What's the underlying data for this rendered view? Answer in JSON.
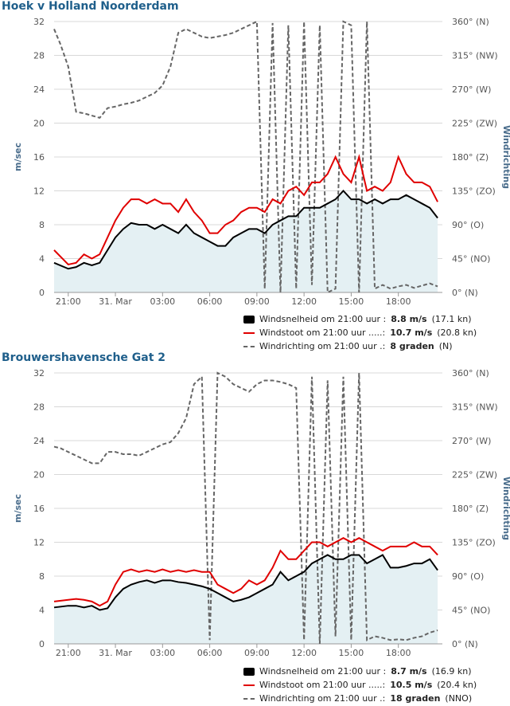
{
  "chart_data": [
    {
      "type": "area",
      "title": "Hoek v Holland Noorderdam",
      "ylabel_left": "m/sec",
      "ylabel_right": "Windrichting",
      "x_ticks": [
        "21:00",
        "31. Mar",
        "03:00",
        "06:00",
        "09:00",
        "12:00",
        "15:00",
        "18:00"
      ],
      "x_tick_hours": [
        0,
        3,
        6,
        9,
        12,
        15,
        18,
        21
      ],
      "x_range_hours": [
        -0.9,
        23.8
      ],
      "y_ticks_left": [
        "0",
        "4",
        "8",
        "12",
        "16",
        "20",
        "24",
        "28",
        "32"
      ],
      "y_ticks_right": [
        "0° (N)",
        "45° (NO)",
        "90° (O)",
        "135° (ZO)",
        "180° (Z)",
        "225° (ZW)",
        "270° (W)",
        "315° (NW)",
        "360° (N)"
      ],
      "ylim_left": [
        0,
        32
      ],
      "ylim_right": [
        0,
        360
      ],
      "grid": true,
      "legend_position": "bottom-right",
      "series": [
        {
          "name": "Windsnelheid",
          "color": "#000000",
          "style": "area",
          "x": [
            -0.9,
            0,
            0.5,
            1,
            1.5,
            2,
            2.5,
            3,
            3.5,
            4,
            4.5,
            5,
            5.5,
            6,
            6.5,
            7,
            7.5,
            8,
            8.5,
            9,
            9.5,
            10,
            10.5,
            11,
            11.5,
            12,
            12.5,
            13,
            13.5,
            14,
            14.5,
            15,
            15.5,
            16,
            16.5,
            17,
            17.5,
            18,
            18.5,
            19,
            19.5,
            20,
            20.5,
            21,
            21.5,
            22,
            22.5,
            23,
            23.5
          ],
          "values": [
            3.5,
            2.8,
            3,
            3.5,
            3.2,
            3.5,
            5,
            6.5,
            7.5,
            8.2,
            8,
            8,
            7.5,
            8,
            7.5,
            7,
            8,
            7,
            6.5,
            6,
            5.5,
            5.5,
            6.5,
            7,
            7.5,
            7.5,
            7,
            8,
            8.5,
            9,
            9,
            10,
            10,
            10,
            10.5,
            11,
            12,
            11,
            11,
            10.5,
            11,
            10.5,
            11,
            11,
            11.5,
            11,
            10.5,
            10,
            8.8
          ]
        },
        {
          "name": "Windstoot",
          "color": "#e00000",
          "style": "line",
          "x": [
            -0.9,
            0,
            0.5,
            1,
            1.5,
            2,
            2.5,
            3,
            3.5,
            4,
            4.5,
            5,
            5.5,
            6,
            6.5,
            7,
            7.5,
            8,
            8.5,
            9,
            9.5,
            10,
            10.5,
            11,
            11.5,
            12,
            12.5,
            13,
            13.5,
            14,
            14.5,
            15,
            15.5,
            16,
            16.5,
            17,
            17.5,
            18,
            18.5,
            19,
            19.5,
            20,
            20.5,
            21,
            21.5,
            22,
            22.5,
            23,
            23.5
          ],
          "values": [
            5,
            3.3,
            3.5,
            4.5,
            4,
            4.5,
            6.5,
            8.5,
            10,
            11,
            11,
            10.5,
            11,
            10.5,
            10.5,
            9.5,
            11,
            9.5,
            8.5,
            7,
            7,
            8,
            8.5,
            9.5,
            10,
            10,
            9.5,
            11,
            10.5,
            12,
            12.5,
            11.5,
            13,
            13,
            14,
            16,
            14,
            13,
            16,
            12,
            12.5,
            12,
            13,
            16,
            14,
            13,
            13,
            12.5,
            10.7
          ]
        },
        {
          "name": "Windrichting",
          "color": "#666666",
          "style": "dashed",
          "x": [
            -0.9,
            -0.5,
            0,
            0.5,
            1,
            1.5,
            2,
            2.5,
            3,
            3.5,
            4,
            4.5,
            5,
            5.5,
            6,
            6.5,
            7,
            7.5,
            8,
            8.5,
            9,
            9.5,
            10,
            10.5,
            11,
            11.5,
            12,
            12.5,
            13,
            13.5,
            14,
            14.5,
            15,
            15.5,
            16,
            16.5,
            17,
            17.5,
            18,
            18.5,
            19,
            19.5,
            20,
            20.5,
            21,
            21.5,
            22,
            22.5,
            23,
            23.5
          ],
          "values": [
            350,
            330,
            300,
            240,
            238,
            235,
            232,
            245,
            247,
            250,
            252,
            255,
            260,
            265,
            275,
            300,
            345,
            350,
            345,
            340,
            338,
            340,
            342,
            345,
            350,
            355,
            360,
            5,
            358,
            0,
            355,
            5,
            360,
            10,
            355,
            0,
            5,
            360,
            355,
            0,
            360,
            5,
            10,
            5,
            8,
            10,
            6,
            9,
            12,
            8
          ]
        }
      ]
    },
    {
      "type": "area",
      "title": "Brouwershavensche Gat 2",
      "ylabel_left": "m/sec",
      "ylabel_right": "Windrichting",
      "x_ticks": [
        "21:00",
        "31. Mar",
        "03:00",
        "06:00",
        "09:00",
        "12:00",
        "15:00",
        "18:00"
      ],
      "x_tick_hours": [
        0,
        3,
        6,
        9,
        12,
        15,
        18,
        21
      ],
      "x_range_hours": [
        -0.9,
        23.8
      ],
      "y_ticks_left": [
        "0",
        "4",
        "8",
        "12",
        "16",
        "20",
        "24",
        "28",
        "32"
      ],
      "y_ticks_right": [
        "0° (N)",
        "45° (NO)",
        "90° (O)",
        "135° (ZO)",
        "180° (Z)",
        "225° (ZW)",
        "270° (W)",
        "315° (NW)",
        "360° (N)"
      ],
      "ylim_left": [
        0,
        32
      ],
      "ylim_right": [
        0,
        360
      ],
      "grid": true,
      "legend_position": "bottom-right",
      "series": [
        {
          "name": "Windsnelheid",
          "color": "#000000",
          "style": "area",
          "x": [
            -0.9,
            0,
            0.5,
            1,
            1.5,
            2,
            2.5,
            3,
            3.5,
            4,
            4.5,
            5,
            5.5,
            6,
            6.5,
            7,
            7.5,
            8,
            8.5,
            9,
            9.5,
            10,
            10.5,
            11,
            11.5,
            12,
            12.5,
            13,
            13.5,
            14,
            14.5,
            15,
            15.5,
            16,
            16.5,
            17,
            17.5,
            18,
            18.5,
            19,
            19.5,
            20,
            20.5,
            21,
            21.5,
            22,
            22.5,
            23,
            23.5
          ],
          "values": [
            4.3,
            4.5,
            4.5,
            4.3,
            4.5,
            4,
            4.2,
            5.5,
            6.5,
            7,
            7.3,
            7.5,
            7.2,
            7.5,
            7.5,
            7.3,
            7.2,
            7,
            6.8,
            6.5,
            6,
            5.5,
            5,
            5.2,
            5.5,
            6,
            6.5,
            7,
            8.5,
            7.5,
            8,
            8.5,
            9.5,
            10,
            10.5,
            10,
            10,
            10.5,
            10.5,
            9.5,
            10,
            10.5,
            9,
            9,
            9.2,
            9.5,
            9.5,
            10,
            8.7
          ]
        },
        {
          "name": "Windstoot",
          "color": "#e00000",
          "style": "line",
          "x": [
            -0.9,
            0,
            0.5,
            1,
            1.5,
            2,
            2.5,
            3,
            3.5,
            4,
            4.5,
            5,
            5.5,
            6,
            6.5,
            7,
            7.5,
            8,
            8.5,
            9,
            9.5,
            10,
            10.5,
            11,
            11.5,
            12,
            12.5,
            13,
            13.5,
            14,
            14.5,
            15,
            15.5,
            16,
            16.5,
            17,
            17.5,
            18,
            18.5,
            19,
            19.5,
            20,
            20.5,
            21,
            21.5,
            22,
            22.5,
            23,
            23.5
          ],
          "values": [
            5,
            5.2,
            5.3,
            5.2,
            5,
            4.5,
            5,
            7,
            8.5,
            8.8,
            8.5,
            8.7,
            8.5,
            8.8,
            8.5,
            8.7,
            8.5,
            8.7,
            8.5,
            8.5,
            7,
            6.5,
            6,
            6.5,
            7.5,
            7,
            7.5,
            9,
            11,
            10,
            10,
            11,
            12,
            12,
            11.5,
            12,
            12.5,
            12,
            12.5,
            12,
            11.5,
            11,
            11.5,
            11.5,
            11.5,
            12,
            11.5,
            11.5,
            10.5
          ]
        },
        {
          "name": "Windrichting",
          "color": "#666666",
          "style": "dashed",
          "x": [
            -0.9,
            -0.5,
            0,
            0.5,
            1,
            1.5,
            2,
            2.5,
            3,
            3.5,
            4,
            4.5,
            5,
            5.5,
            6,
            6.5,
            7,
            7.5,
            8,
            8.5,
            9,
            9.5,
            10,
            10.5,
            11,
            11.5,
            12,
            12.5,
            13,
            13.5,
            14,
            14.5,
            15,
            15.5,
            16,
            16.5,
            17,
            17.5,
            18,
            18.5,
            19,
            19.5,
            20,
            20.5,
            21,
            21.5,
            22,
            22.5,
            23,
            23.5
          ],
          "values": [
            262,
            260,
            255,
            250,
            245,
            240,
            240,
            255,
            255,
            252,
            252,
            250,
            255,
            260,
            265,
            268,
            280,
            300,
            345,
            355,
            5,
            360,
            355,
            345,
            340,
            335,
            345,
            350,
            350,
            348,
            345,
            340,
            5,
            355,
            0,
            350,
            10,
            355,
            5,
            360,
            5,
            10,
            8,
            5,
            6,
            5,
            8,
            10,
            15,
            18
          ]
        }
      ]
    }
  ],
  "legends": [
    {
      "speed_label": "Windsnelheid om 21:00 uur :",
      "speed_value": "8.8 m/s",
      "speed_extra": "(17.1 kn)",
      "gust_label": "Windstoot om 21:00 uur .....:",
      "gust_value": "10.7 m/s",
      "gust_extra": "(20.8 kn)",
      "dir_label": "Windrichting om 21:00 uur .:",
      "dir_value": "8 graden",
      "dir_extra": "(N)"
    },
    {
      "speed_label": "Windsnelheid om 21:00 uur :",
      "speed_value": "8.7 m/s",
      "speed_extra": "(16.9 kn)",
      "gust_label": "Windstoot om 21:00 uur .....:",
      "gust_value": "10.5 m/s",
      "gust_extra": "(20.4 kn)",
      "dir_label": "Windrichting om 21:00 uur .:",
      "dir_value": "18 graden",
      "dir_extra": "(NNO)"
    }
  ],
  "colors": {
    "area_fill": "#e4f0f3",
    "speed": "#000000",
    "gust": "#e00000",
    "direction": "#666666",
    "title": "#1f5f8b"
  }
}
